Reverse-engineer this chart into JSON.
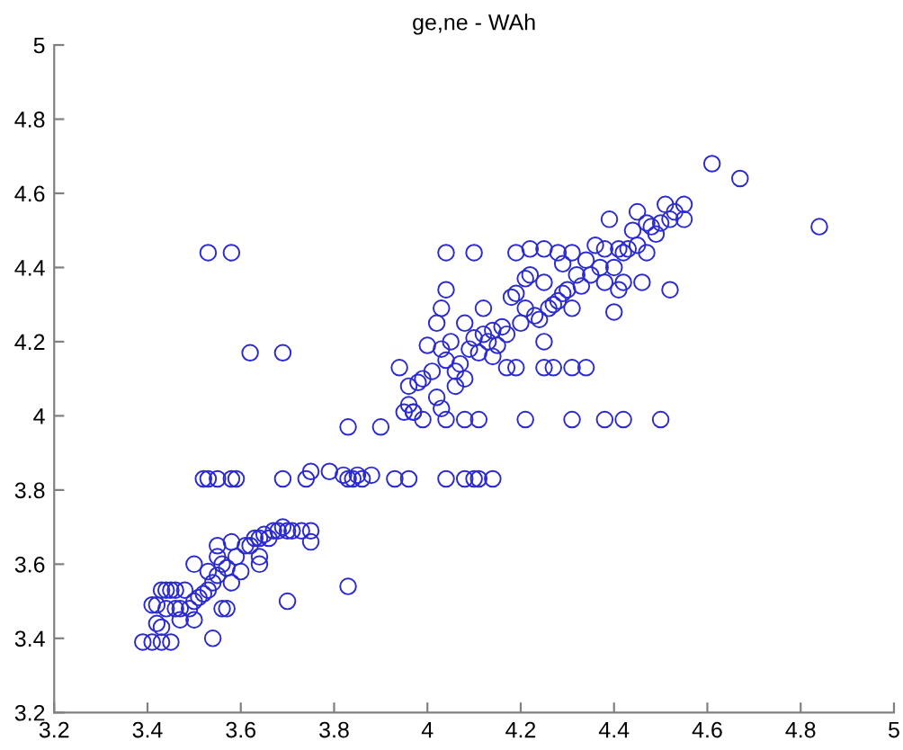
{
  "chart_data": {
    "type": "scatter",
    "title": "ge,ne - WAh",
    "marker": "circle",
    "grid": false,
    "xlim": [
      3.2,
      5
    ],
    "ylim": [
      3.2,
      5
    ],
    "xticks": [
      3.2,
      3.4,
      3.6,
      3.8,
      4,
      4.2,
      4.4,
      4.6,
      4.8,
      5
    ],
    "yticks": [
      3.2,
      3.4,
      3.6,
      3.8,
      4,
      4.2,
      4.4,
      4.6,
      4.8,
      5
    ],
    "series": [
      {
        "color": "#2a2ad0",
        "x": [
          3.53,
          3.58,
          3.62,
          3.69,
          4.04,
          4.1,
          4.19,
          4.22,
          4.25,
          4.28,
          4.31,
          4.04,
          4.03,
          3.52,
          3.53,
          3.55,
          3.58,
          3.59,
          3.69,
          3.74,
          3.75,
          3.79,
          3.82,
          3.83,
          3.84,
          3.85,
          3.86,
          3.88,
          3.93,
          3.96,
          4.04,
          4.08,
          4.1,
          4.11,
          4.14,
          3.83,
          3.9,
          3.97,
          3.99,
          4.04,
          4.08,
          4.11,
          4.21,
          4.31,
          4.38,
          4.42,
          4.5,
          4.17,
          4.19,
          4.25,
          4.27,
          4.31,
          4.34,
          3.83,
          3.7,
          3.54,
          4.61,
          4.67,
          4.84,
          4.52,
          4.4,
          3.39,
          3.41,
          3.43,
          3.45,
          3.42,
          3.43,
          3.41,
          3.42,
          3.43,
          3.44,
          3.45,
          3.46,
          3.44,
          3.46,
          3.47,
          3.48,
          3.49,
          3.5,
          3.5,
          3.51,
          3.52,
          3.5,
          3.53,
          3.54,
          3.55,
          3.56,
          3.55,
          3.56,
          3.57,
          3.58,
          3.58,
          3.59,
          3.6,
          3.61,
          3.62,
          3.63,
          3.64,
          3.64,
          3.64,
          3.65,
          3.66,
          3.67,
          3.68,
          3.69,
          3.7,
          3.71,
          3.73,
          3.75,
          3.75,
          3.57,
          3.55,
          3.53,
          3.47,
          3.94,
          3.95,
          3.96,
          3.96,
          3.97,
          3.98,
          3.99,
          4.0,
          4.01,
          4.02,
          4.02,
          4.03,
          4.03,
          4.04,
          4.05,
          4.06,
          4.06,
          4.07,
          4.08,
          4.08,
          4.09,
          4.1,
          4.11,
          4.12,
          4.12,
          4.13,
          4.14,
          4.14,
          4.15,
          4.16,
          4.17,
          4.18,
          4.19,
          4.2,
          4.21,
          4.21,
          4.22,
          4.23,
          4.24,
          4.25,
          4.25,
          4.26,
          4.27,
          4.28,
          4.29,
          4.29,
          4.3,
          4.31,
          4.32,
          4.33,
          4.34,
          4.35,
          4.36,
          4.37,
          4.38,
          4.38,
          4.39,
          4.4,
          4.41,
          4.42,
          4.43,
          4.44,
          4.45,
          4.45,
          4.46,
          4.47,
          4.47,
          4.48,
          4.49,
          4.5,
          4.51,
          4.52,
          4.53,
          4.55,
          4.55,
          4.41,
          4.42
        ],
        "values": [
          4.44,
          4.44,
          4.17,
          4.17,
          4.44,
          4.44,
          4.44,
          4.45,
          4.45,
          4.44,
          4.44,
          4.34,
          4.29,
          3.83,
          3.83,
          3.83,
          3.83,
          3.83,
          3.83,
          3.83,
          3.85,
          3.85,
          3.84,
          3.83,
          3.83,
          3.84,
          3.83,
          3.84,
          3.83,
          3.83,
          3.83,
          3.83,
          3.83,
          3.83,
          3.83,
          3.97,
          3.97,
          4.01,
          3.99,
          3.99,
          3.99,
          3.99,
          3.99,
          3.99,
          3.99,
          3.99,
          3.99,
          4.13,
          4.13,
          4.13,
          4.13,
          4.13,
          4.13,
          3.54,
          3.5,
          3.4,
          4.68,
          4.64,
          4.51,
          4.34,
          4.28,
          3.39,
          3.39,
          3.39,
          3.39,
          3.44,
          3.43,
          3.49,
          3.49,
          3.53,
          3.53,
          3.53,
          3.53,
          3.48,
          3.48,
          3.48,
          3.53,
          3.48,
          3.5,
          3.45,
          3.51,
          3.52,
          3.6,
          3.53,
          3.55,
          3.57,
          3.48,
          3.62,
          3.6,
          3.59,
          3.66,
          3.55,
          3.62,
          3.58,
          3.65,
          3.65,
          3.67,
          3.67,
          3.6,
          3.62,
          3.68,
          3.67,
          3.69,
          3.69,
          3.7,
          3.69,
          3.69,
          3.69,
          3.69,
          3.66,
          3.48,
          3.65,
          3.58,
          3.45,
          4.13,
          4.01,
          4.03,
          4.08,
          4.01,
          4.09,
          4.1,
          4.19,
          4.12,
          4.25,
          4.05,
          4.18,
          4.02,
          4.15,
          4.2,
          4.12,
          4.08,
          4.14,
          4.25,
          4.1,
          4.18,
          4.21,
          4.17,
          4.29,
          4.22,
          4.2,
          4.23,
          4.16,
          4.19,
          4.24,
          4.22,
          4.32,
          4.33,
          4.25,
          4.37,
          4.29,
          4.38,
          4.27,
          4.26,
          4.2,
          4.36,
          4.29,
          4.3,
          4.31,
          4.33,
          4.41,
          4.34,
          4.29,
          4.38,
          4.35,
          4.42,
          4.38,
          4.46,
          4.4,
          4.45,
          4.36,
          4.53,
          4.4,
          4.45,
          4.36,
          4.45,
          4.5,
          4.46,
          4.55,
          4.36,
          4.44,
          4.52,
          4.51,
          4.49,
          4.52,
          4.57,
          4.53,
          4.55,
          4.57,
          4.53,
          4.34,
          4.44
        ]
      }
    ]
  }
}
